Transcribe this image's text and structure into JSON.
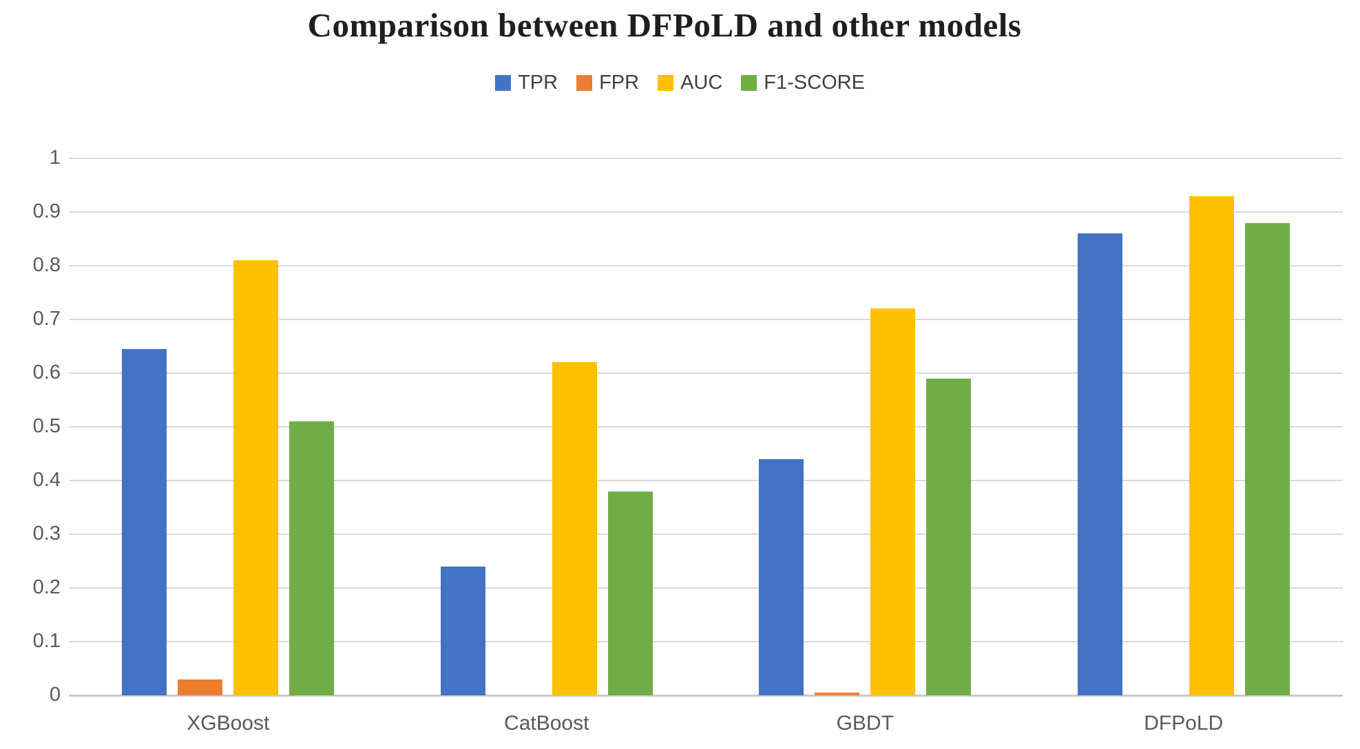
{
  "chart_data": {
    "type": "bar",
    "title": "Comparison between DFPoLD and other models",
    "categories": [
      "XGBoost",
      "CatBoost",
      "GBDT",
      "DFPoLD"
    ],
    "series": [
      {
        "name": "TPR",
        "color": "#4472C4",
        "values": [
          0.645,
          0.24,
          0.44,
          0.86
        ]
      },
      {
        "name": "FPR",
        "color": "#ED7D31",
        "values": [
          0.03,
          0,
          0.005,
          0
        ]
      },
      {
        "name": "AUC",
        "color": "#FFC000",
        "values": [
          0.81,
          0.62,
          0.72,
          0.93
        ]
      },
      {
        "name": "F1-SCORE",
        "color": "#70AD47",
        "values": [
          0.51,
          0.38,
          0.59,
          0.88
        ]
      }
    ],
    "ylim": [
      0,
      1
    ],
    "yticks": [
      {
        "value": 0,
        "label": "0"
      },
      {
        "value": 0.1,
        "label": "0.1"
      },
      {
        "value": 0.2,
        "label": "0.2"
      },
      {
        "value": 0.3,
        "label": "0.3"
      },
      {
        "value": 0.4,
        "label": "0.4"
      },
      {
        "value": 0.5,
        "label": "0.5"
      },
      {
        "value": 0.6,
        "label": "0.6"
      },
      {
        "value": 0.7,
        "label": "0.7"
      },
      {
        "value": 0.8,
        "label": "0.8"
      },
      {
        "value": 0.9,
        "label": "0.9"
      },
      {
        "value": 1,
        "label": "1"
      }
    ],
    "grid": true,
    "legend_position": "top-center",
    "xlabel": "",
    "ylabel": "",
    "colors": {
      "gridline": "#D9D9D9",
      "axis_line": "#C9C9C9",
      "tick_text": "#595959",
      "category_text": "#595959",
      "legend_text": "#404040",
      "title_text": "#1F1F1F"
    }
  }
}
